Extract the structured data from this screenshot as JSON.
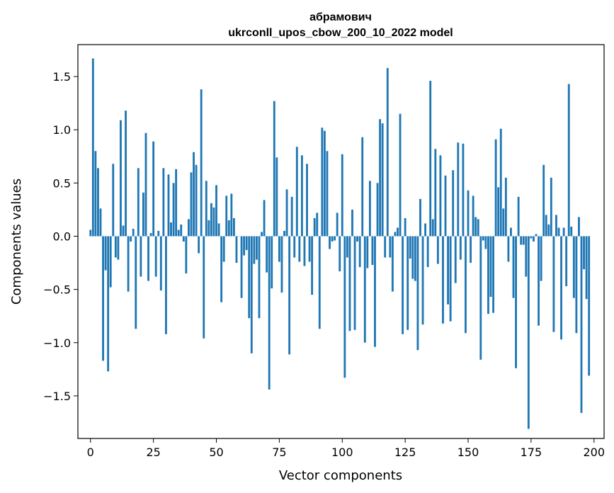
{
  "chart_data": {
    "type": "bar",
    "title": "абрамович",
    "subtitle": "ukrconll_upos_cbow_200_10_2022 model",
    "xlabel": "Vector components",
    "ylabel": "Components values",
    "xlim": [
      -5,
      204
    ],
    "ylim": [
      -1.9,
      1.8
    ],
    "xticks": [
      0,
      25,
      50,
      75,
      100,
      125,
      150,
      175,
      200
    ],
    "yticks": [
      -1.5,
      -1.0,
      -0.5,
      0.0,
      0.5,
      1.0,
      1.5
    ],
    "ytick_labels": [
      "−1.5",
      "−1.0",
      "−0.5",
      "0.0",
      "0.5",
      "1.0",
      "1.5"
    ],
    "bar_color": "#1f77b4",
    "grid": false,
    "values": [
      0.06,
      1.67,
      0.8,
      0.64,
      0.26,
      -1.17,
      -0.32,
      -1.27,
      -0.48,
      0.68,
      -0.2,
      -0.22,
      1.09,
      0.1,
      1.18,
      -0.52,
      -0.05,
      0.07,
      -0.87,
      0.64,
      -0.38,
      0.41,
      0.97,
      -0.42,
      0.03,
      0.89,
      -0.38,
      0.05,
      -0.51,
      0.64,
      -0.92,
      0.58,
      0.13,
      0.5,
      0.63,
      0.06,
      0.11,
      -0.05,
      -0.35,
      0.16,
      0.6,
      0.79,
      0.67,
      -0.16,
      1.38,
      -0.96,
      0.52,
      0.15,
      0.31,
      0.27,
      0.48,
      0.12,
      -0.62,
      -0.24,
      0.38,
      0.15,
      0.4,
      0.17,
      -0.25,
      0.0,
      -0.58,
      -0.18,
      -0.13,
      -0.77,
      -1.1,
      -0.26,
      -0.22,
      -0.77,
      0.04,
      0.34,
      -0.34,
      -1.44,
      -0.49,
      1.27,
      0.74,
      -0.24,
      -0.53,
      0.05,
      0.44,
      -1.11,
      0.37,
      -0.2,
      0.84,
      -0.24,
      0.76,
      -0.28,
      0.68,
      -0.24,
      -0.55,
      0.17,
      0.22,
      -0.87,
      1.02,
      0.99,
      0.8,
      -0.12,
      -0.05,
      -0.04,
      0.22,
      -0.33,
      0.77,
      -1.33,
      -0.2,
      -0.89,
      0.25,
      -0.88,
      -0.05,
      -0.29,
      0.93,
      -1.0,
      -0.3,
      0.52,
      -0.27,
      -1.04,
      0.5,
      1.1,
      1.06,
      -0.2,
      1.58,
      -0.2,
      -0.52,
      0.04,
      0.08,
      1.15,
      -0.92,
      0.17,
      -0.88,
      -0.21,
      -0.4,
      -0.42,
      -1.07,
      0.35,
      -0.83,
      0.12,
      -0.29,
      1.46,
      0.16,
      0.82,
      -0.26,
      0.76,
      -0.82,
      0.57,
      -0.64,
      -0.8,
      0.62,
      -0.44,
      0.88,
      -0.22,
      0.87,
      -0.91,
      0.43,
      -0.25,
      0.38,
      0.18,
      0.16,
      -1.16,
      -0.04,
      -0.12,
      -0.73,
      -0.57,
      -0.72,
      0.91,
      0.46,
      1.01,
      0.26,
      0.55,
      -0.24,
      0.08,
      -0.58,
      -1.24,
      0.37,
      -0.08,
      -0.08,
      -0.38,
      -1.81,
      -0.02,
      -0.05,
      0.02,
      -0.84,
      -0.42,
      0.67,
      0.2,
      0.11,
      0.55,
      -0.9,
      0.2,
      0.08,
      -0.97,
      0.08,
      -0.47,
      1.43,
      0.09,
      -0.58,
      -0.91,
      0.18,
      -1.66,
      -0.31,
      -0.59,
      -1.31
    ]
  }
}
